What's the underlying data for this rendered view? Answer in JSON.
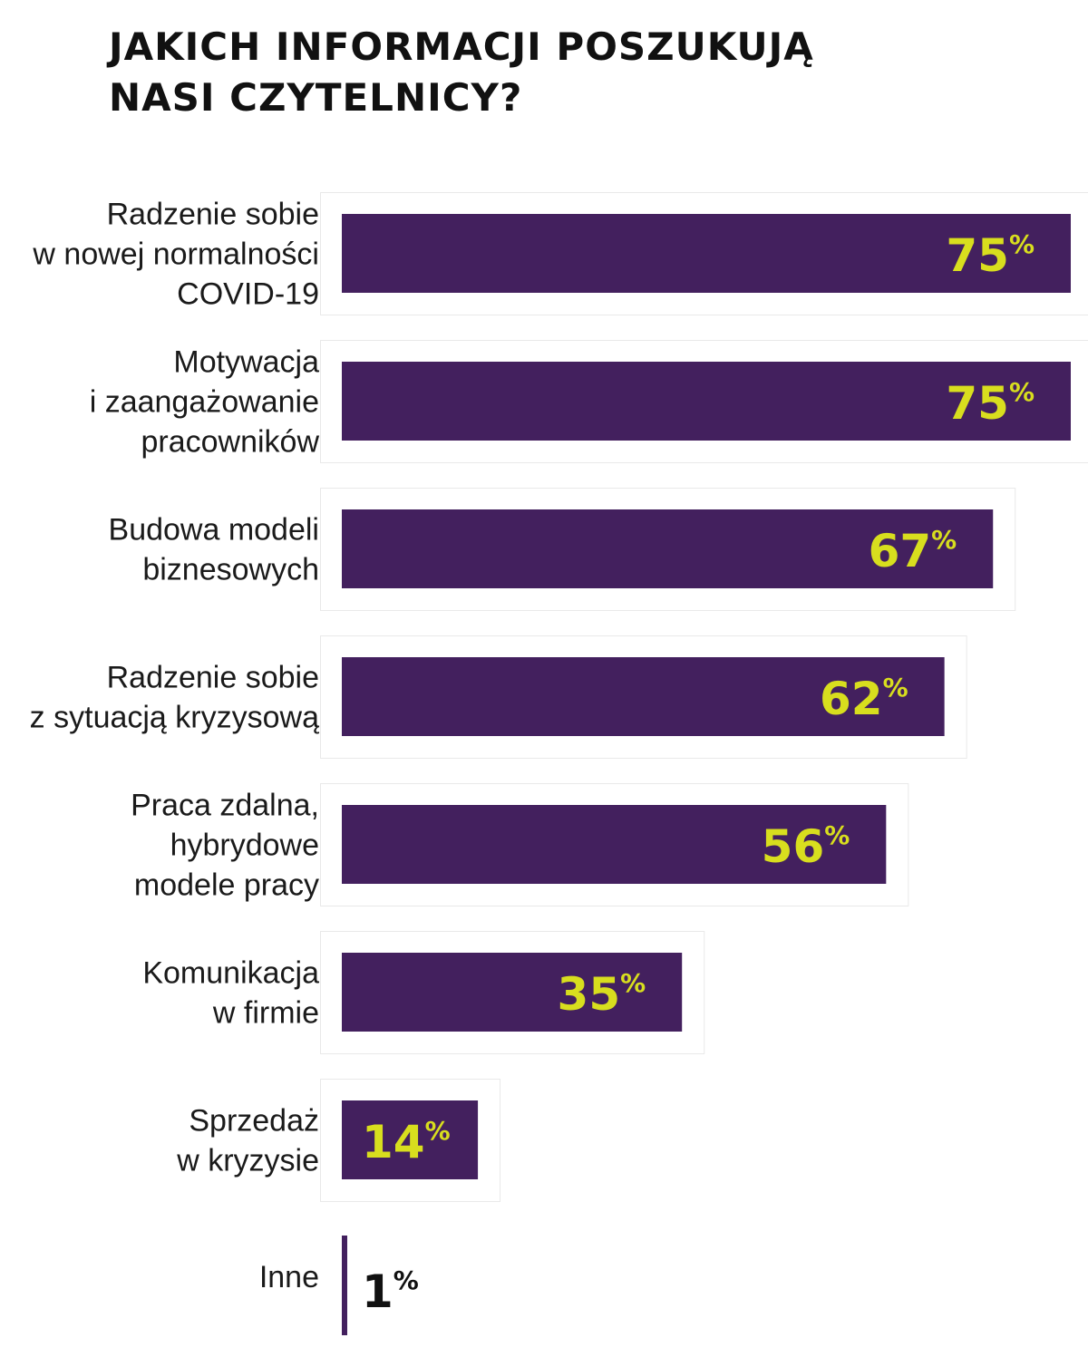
{
  "title_lines": [
    "JAKICH INFORMACJI POSZUKUJĄ",
    "NASI CZYTELNICY?"
  ],
  "colors": {
    "bar": "#43205e",
    "value_label": "#d8de1e",
    "value_label_outside": "#111111",
    "panel_border": "#e9e9e9"
  },
  "chart_data": {
    "type": "bar",
    "orientation": "horizontal",
    "title": "JAKICH INFORMACJI POSZUKUJĄ NASI CZYTELNICY?",
    "unit": "%",
    "categories": [
      [
        "Radzenie sobie",
        "w nowej normalności",
        "COVID-19"
      ],
      [
        "Motywacja",
        "i zaangażowanie",
        "pracowników"
      ],
      [
        "Budowa modeli",
        "biznesowych"
      ],
      [
        "Radzenie sobie",
        "z sytuacją kryzysową"
      ],
      [
        "Praca zdalna,",
        "hybrydowe",
        "modele pracy"
      ],
      [
        "Komunikacja",
        "w firmie"
      ],
      [
        "Sprzedaż",
        "w kryzysie"
      ],
      [
        "Inne"
      ]
    ],
    "values": [
      75,
      75,
      67,
      62,
      56,
      35,
      14,
      1
    ],
    "value_labels": [
      "75",
      "75",
      "67",
      "62",
      "56",
      "35",
      "14",
      "1"
    ],
    "xlim": [
      0,
      75
    ],
    "grid": false,
    "legend": "none"
  }
}
